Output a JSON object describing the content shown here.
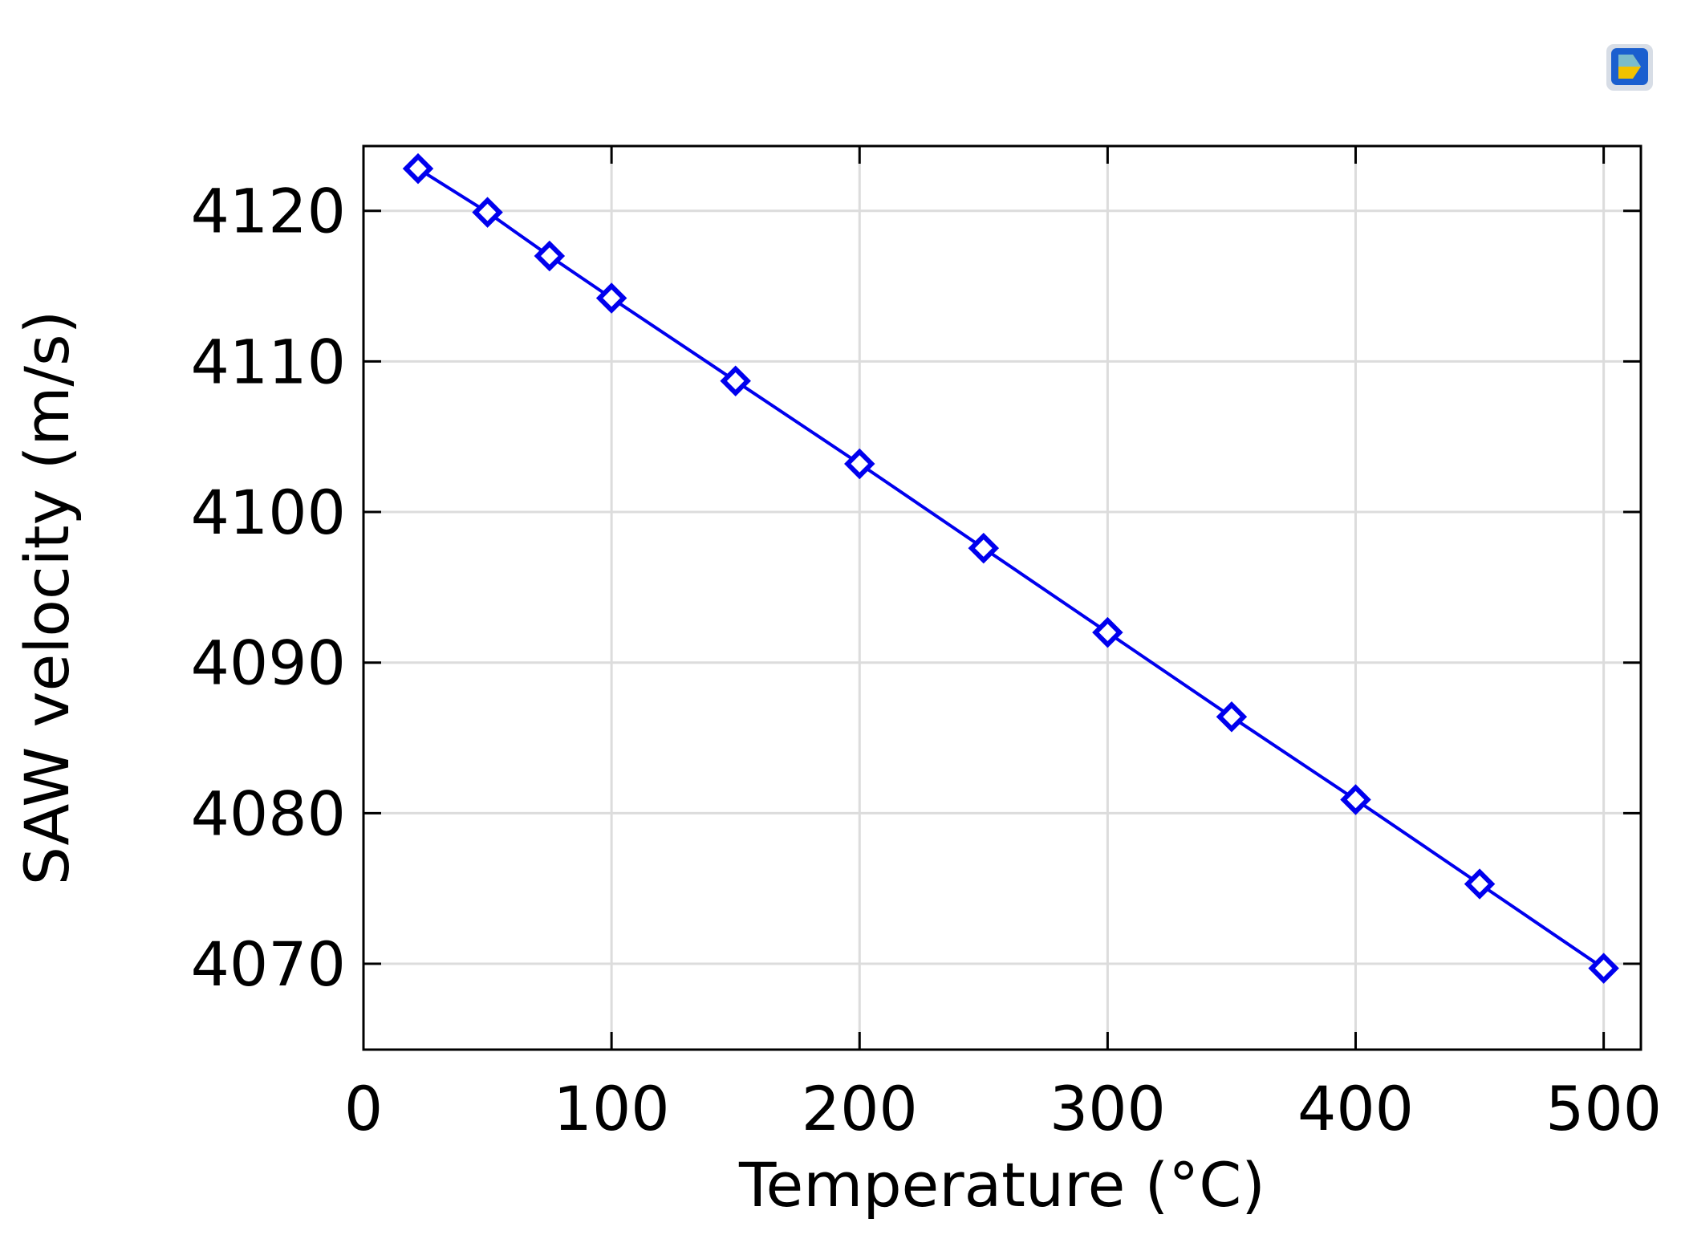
{
  "chart_data": {
    "type": "line",
    "title": "",
    "xlabel": "Temperature (°C)",
    "ylabel": "SAW velocity (m/s)",
    "xlim": [
      0,
      515
    ],
    "ylim": [
      4064.3,
      4124.3
    ],
    "x_ticks": [
      0,
      100,
      200,
      300,
      400,
      500
    ],
    "y_ticks": [
      4070,
      4080,
      4090,
      4100,
      4110,
      4120
    ],
    "grid": true,
    "legend": "none",
    "series": [
      {
        "marker": "diamond",
        "color": "#0000ee",
        "x": [
          22,
          50,
          75,
          100,
          150,
          200,
          250,
          300,
          350,
          400,
          450,
          500
        ],
        "y": [
          4122.8,
          4119.9,
          4117.0,
          4114.2,
          4108.7,
          4103.2,
          4097.6,
          4092.0,
          4086.4,
          4080.9,
          4075.3,
          4069.7
        ]
      }
    ]
  },
  "corner_icon": {
    "icon": "app-logo-icon",
    "colors": [
      "#1a5fcf",
      "#f2c200",
      "#66bbee"
    ]
  }
}
